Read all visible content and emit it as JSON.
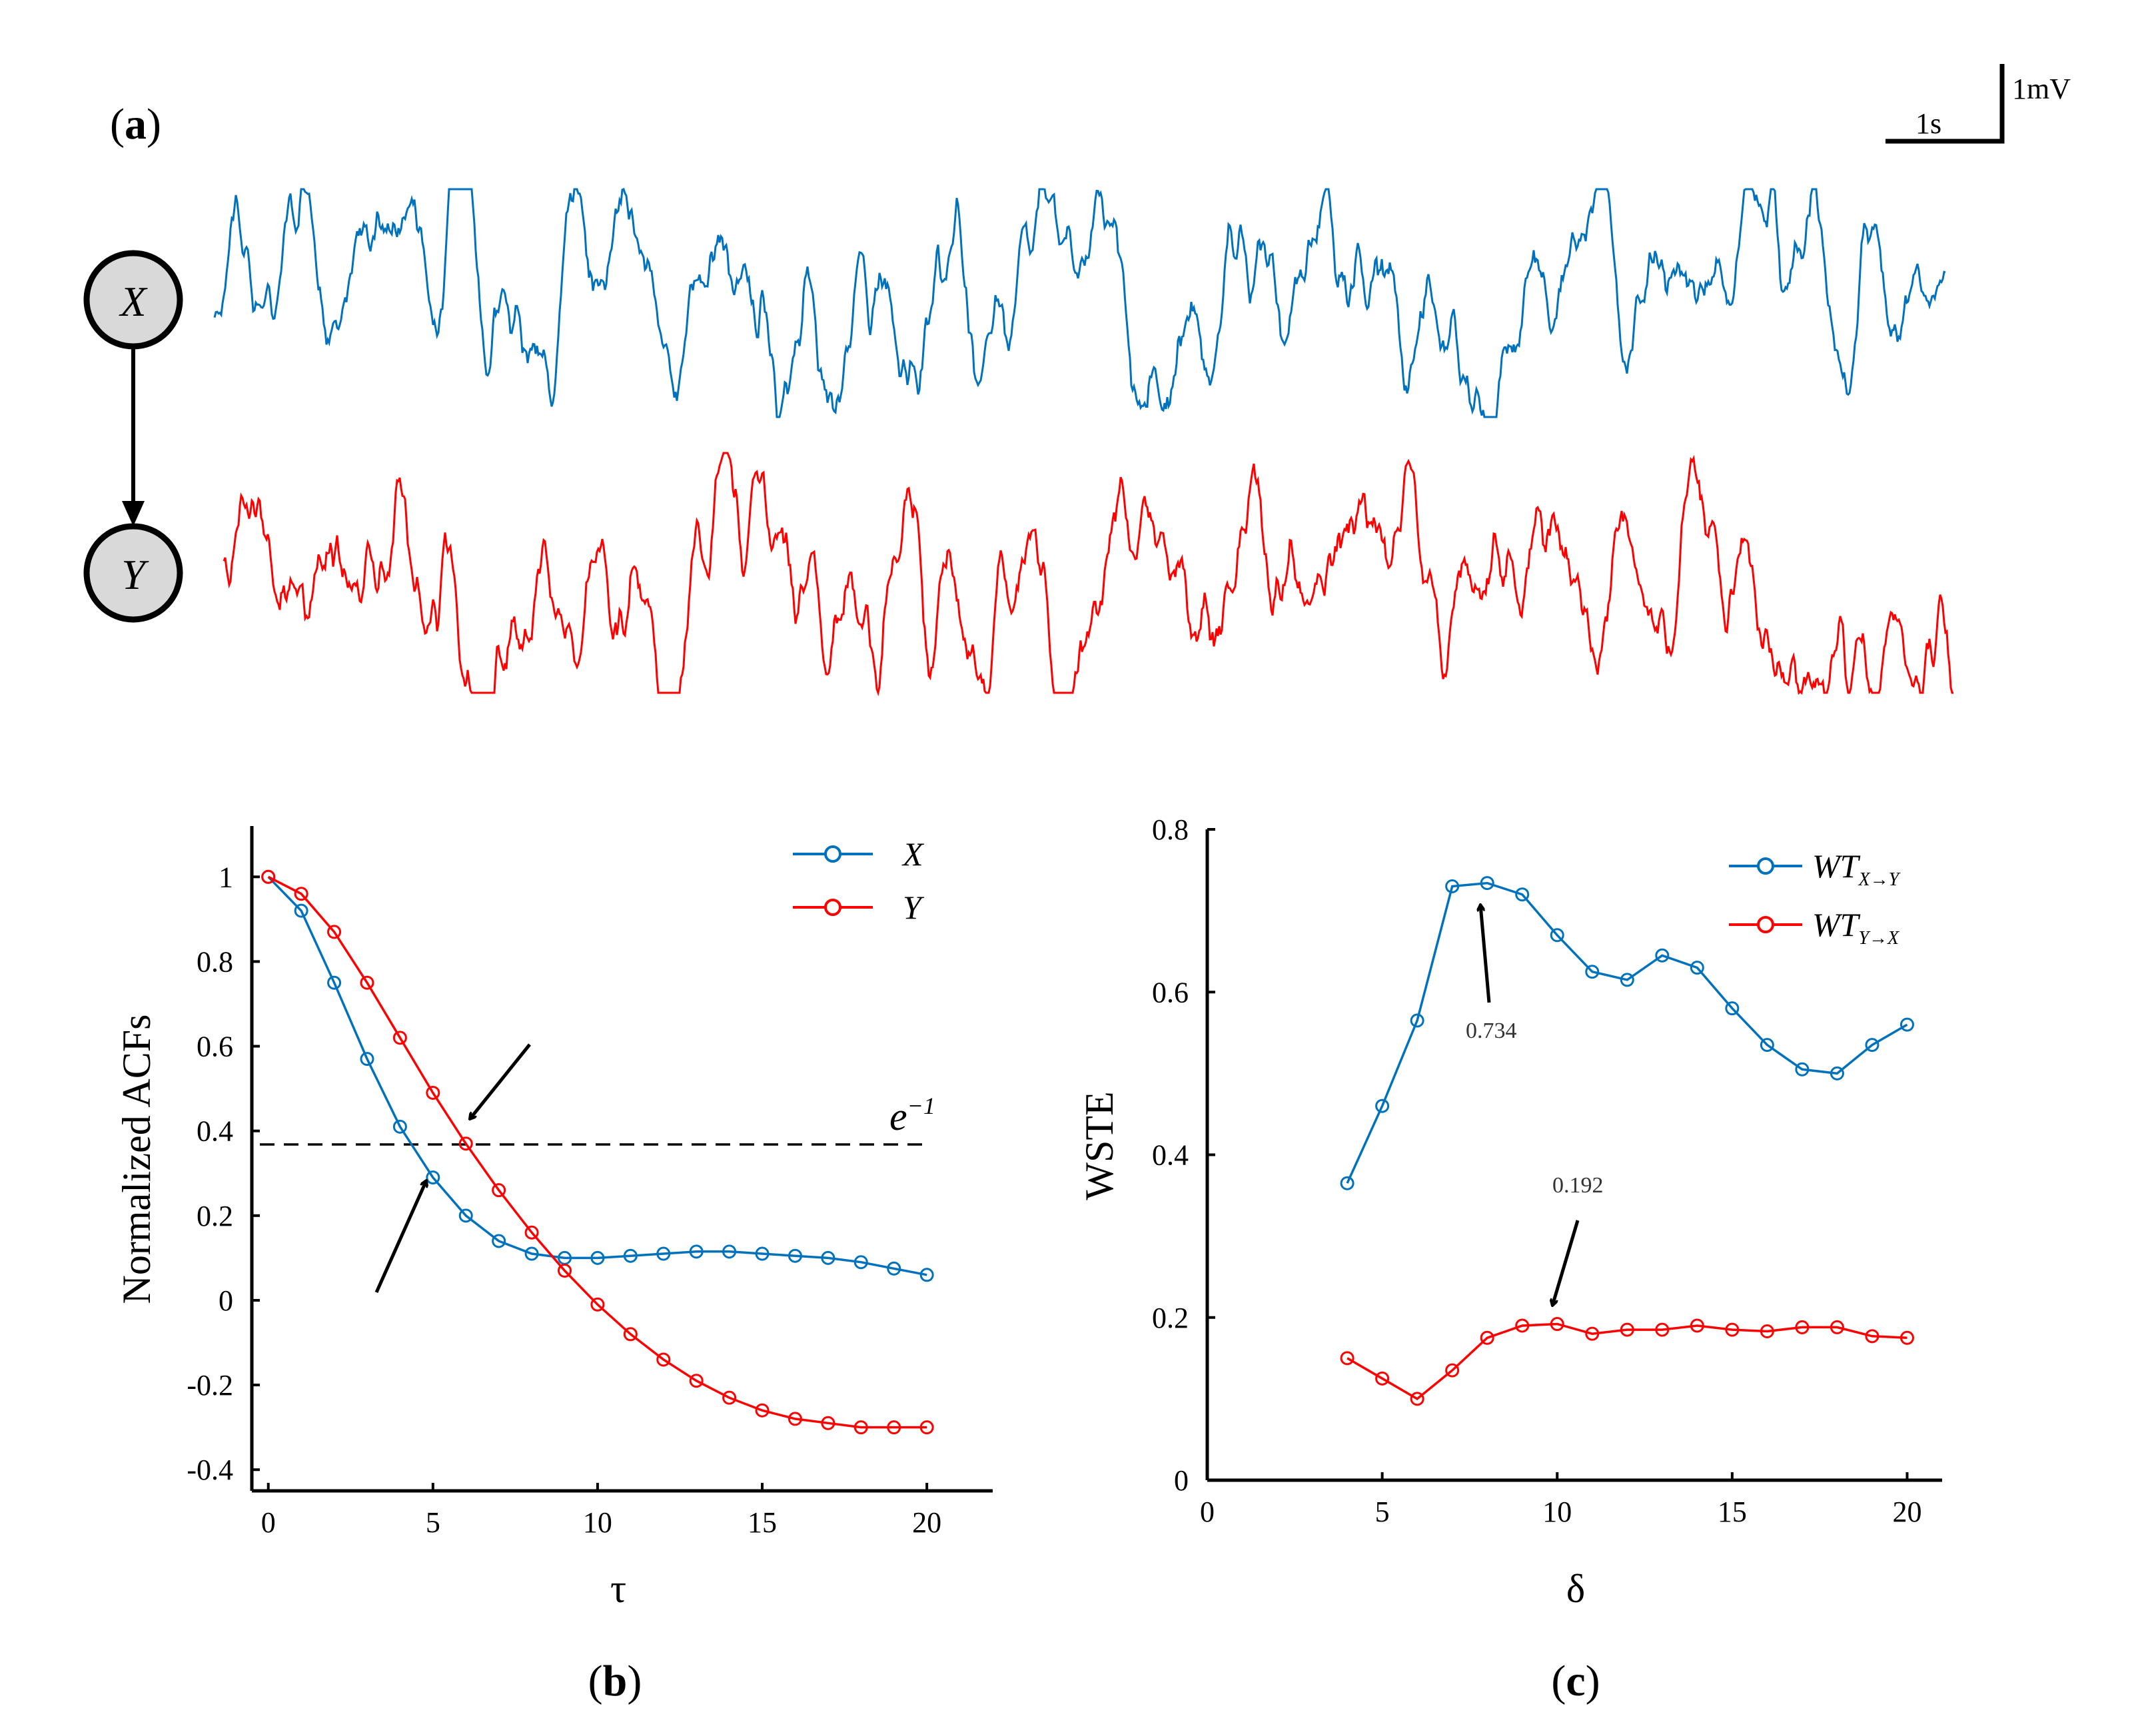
{
  "panel_a": {
    "label_open": "(",
    "label_letter": "a",
    "label_close": ")",
    "node_x": "X",
    "node_y": "Y",
    "scale_time": "1s",
    "scale_volt": "1mV",
    "color_x": "#0072BD",
    "color_y": "#FF0000"
  },
  "panel_b": {
    "label_open": "(",
    "label_letter": "b",
    "label_close": ")",
    "threshold_label_base": "e",
    "threshold_label_exp": "−1"
  },
  "panel_c": {
    "label_open": "(",
    "label_letter": "c",
    "label_close": ")",
    "peak_label": "0.734",
    "peak_label_y": "0.192"
  },
  "chart_data": [
    {
      "id": "b",
      "type": "line",
      "title": "",
      "xlabel": "τ",
      "ylabel": "Normalized ACFs",
      "xlim": [
        -0.5,
        22
      ],
      "ylim": [
        -0.45,
        1.12
      ],
      "xticks": [
        0,
        5,
        10,
        15,
        20
      ],
      "xtick_labels": [
        "0",
        "5",
        "10",
        "15",
        "20"
      ],
      "yticks": [
        1,
        0.8,
        0.6,
        0.4,
        0.2,
        0,
        -0.2,
        -0.4
      ],
      "ytick_labels": [
        "1",
        "0.8",
        "0.6",
        "0.4",
        "0.2",
        "0",
        "-0.2",
        "-0.4"
      ],
      "legend_position": "top-right",
      "threshold": 0.368,
      "series": [
        {
          "name": "X",
          "color": "#0072BD",
          "x": [
            0,
            1,
            2,
            3,
            4,
            5,
            6,
            7,
            8,
            9,
            10,
            11,
            12,
            13,
            14,
            15,
            16,
            17,
            18,
            19,
            20
          ],
          "y": [
            1.0,
            0.92,
            0.75,
            0.57,
            0.41,
            0.29,
            0.2,
            0.14,
            0.11,
            0.1,
            0.1,
            0.105,
            0.11,
            0.115,
            0.115,
            0.11,
            0.105,
            0.1,
            0.09,
            0.075,
            0.06
          ]
        },
        {
          "name": "Y",
          "color": "#FF0000",
          "x": [
            0,
            1,
            2,
            3,
            4,
            5,
            6,
            7,
            8,
            9,
            10,
            11,
            12,
            13,
            14,
            15,
            16,
            17,
            18,
            19,
            20
          ],
          "y": [
            1.0,
            0.96,
            0.87,
            0.75,
            0.62,
            0.49,
            0.37,
            0.26,
            0.16,
            0.07,
            -0.01,
            -0.08,
            -0.14,
            -0.19,
            -0.23,
            -0.26,
            -0.28,
            -0.29,
            -0.3,
            -0.3,
            -0.3
          ]
        }
      ],
      "annotations": [
        "arrow at X crossing",
        "arrow at Y crossing"
      ]
    },
    {
      "id": "c",
      "type": "line",
      "title": "",
      "xlabel": "δ",
      "ylabel": "WSTE",
      "xlim": [
        0,
        21
      ],
      "ylim": [
        0,
        0.8
      ],
      "xticks": [
        0,
        5,
        10,
        15,
        20
      ],
      "xtick_labels": [
        "0",
        "5",
        "10",
        "15",
        "20"
      ],
      "yticks": [
        0,
        0.2,
        0.4,
        0.6,
        0.8
      ],
      "ytick_labels": [
        "0",
        "0.2",
        "0.4",
        "0.6",
        "0.8"
      ],
      "legend_position": "top-right",
      "series": [
        {
          "name": "WT",
          "subscript": "X→Y",
          "color": "#0072BD",
          "x": [
            4,
            5,
            6,
            7,
            8,
            9,
            10,
            11,
            12,
            13,
            14,
            15,
            16,
            17,
            18,
            19,
            20
          ],
          "y": [
            0.365,
            0.46,
            0.565,
            0.73,
            0.734,
            0.72,
            0.67,
            0.625,
            0.615,
            0.645,
            0.63,
            0.58,
            0.535,
            0.505,
            0.5,
            0.535,
            0.56
          ]
        },
        {
          "name": "WT",
          "subscript": "Y→X",
          "color": "#FF0000",
          "x": [
            4,
            5,
            6,
            7,
            8,
            9,
            10,
            11,
            12,
            13,
            14,
            15,
            16,
            17,
            18,
            19,
            20
          ],
          "y": [
            0.15,
            0.125,
            0.1,
            0.135,
            0.175,
            0.19,
            0.192,
            0.18,
            0.185,
            0.185,
            0.19,
            0.185,
            0.183,
            0.188,
            0.188,
            0.177,
            0.175
          ]
        }
      ]
    }
  ]
}
